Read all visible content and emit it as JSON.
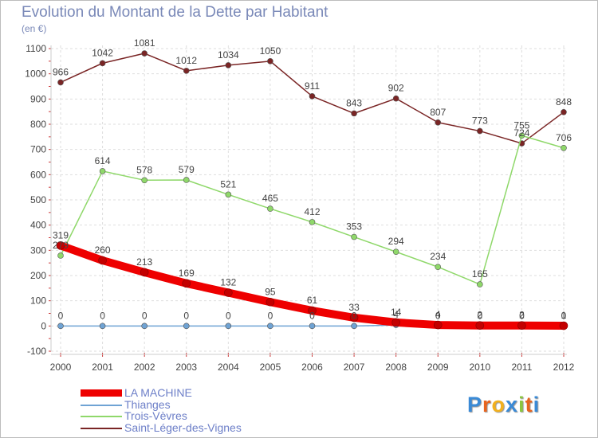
{
  "title": "Evolution du Montant de la Dette par Habitant",
  "unit": "(en €)",
  "logo": "Proxiti",
  "chart_data": {
    "type": "line",
    "title": "Evolution du Montant de la Dette par Habitant",
    "ylabel": "(en €)",
    "xlabel": "",
    "ylim": [
      -100,
      1100
    ],
    "yticks": [
      -100,
      0,
      100,
      200,
      300,
      400,
      500,
      600,
      700,
      800,
      900,
      1000,
      1100
    ],
    "grid": true,
    "legend_position": "bottom-left",
    "categories": [
      "2000",
      "2001",
      "2002",
      "2003",
      "2004",
      "2005",
      "2006",
      "2007",
      "2008",
      "2009",
      "2010",
      "2011",
      "2012"
    ],
    "series": [
      {
        "name": "Saint-Léger-des-Vignes",
        "color": "#7a2525",
        "values": [
          966,
          1042,
          1081,
          1012,
          1034,
          1050,
          911,
          843,
          902,
          807,
          773,
          724,
          848
        ]
      },
      {
        "name": "Trois-Vèvres",
        "color": "#8fd86a",
        "values": [
          279,
          614,
          578,
          579,
          521,
          465,
          412,
          353,
          294,
          234,
          165,
          755,
          706
        ]
      },
      {
        "name": "Thianges",
        "color": "#6fa3d4",
        "values": [
          0,
          0,
          0,
          0,
          0,
          0,
          0,
          0,
          4,
          0,
          0,
          0,
          0
        ]
      },
      {
        "name": "LA MACHINE",
        "color": "#ee0000",
        "values": [
          319,
          260,
          213,
          169,
          132,
          95,
          61,
          33,
          14,
          4,
          2,
          2,
          1
        ]
      }
    ]
  }
}
